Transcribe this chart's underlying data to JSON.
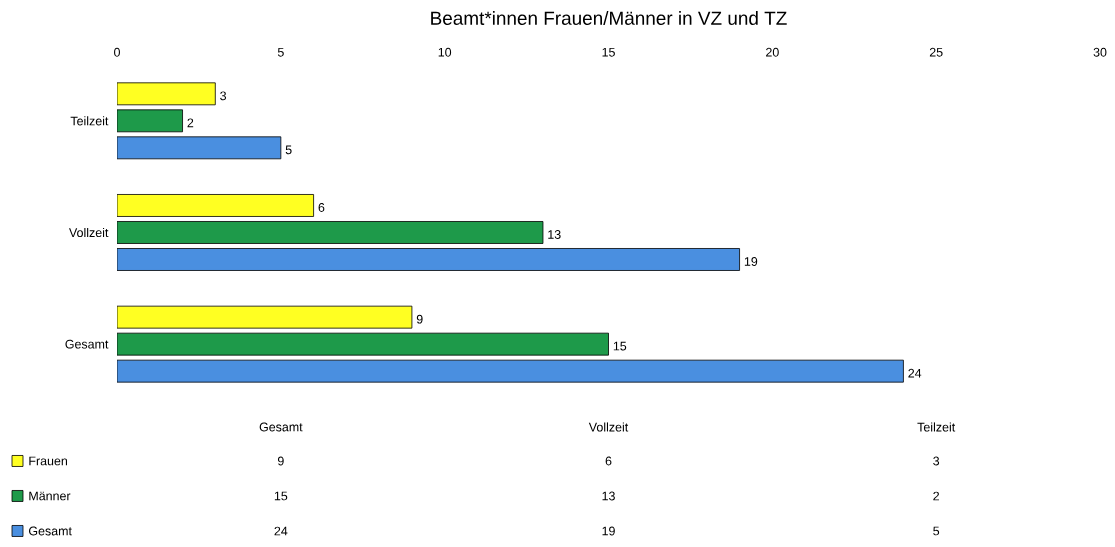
{
  "chart_data": {
    "type": "bar",
    "orientation": "horizontal",
    "title": "Beamt*innen Frauen/Männer in VZ und TZ",
    "categories": [
      "Teilzeit",
      "Vollzeit",
      "Gesamt"
    ],
    "series": [
      {
        "name": "Frauen",
        "color": "#ffff22",
        "values": [
          3,
          6,
          9
        ],
        "value_labels": [
          "3",
          "6",
          "9"
        ]
      },
      {
        "name": "Männer",
        "color": "#1e9a4a",
        "values": [
          2,
          13,
          15
        ],
        "value_labels": [
          "2",
          "13",
          "15"
        ]
      },
      {
        "name": "Gesamt",
        "color": "#4a8fe0",
        "values": [
          5,
          19,
          24
        ],
        "value_labels": [
          "5",
          "19",
          "24"
        ]
      }
    ],
    "xlim": [
      0,
      30
    ],
    "xticks": [
      0,
      5,
      10,
      15,
      20,
      25,
      30
    ],
    "data_labels": true,
    "legend": "bottom left"
  }
}
